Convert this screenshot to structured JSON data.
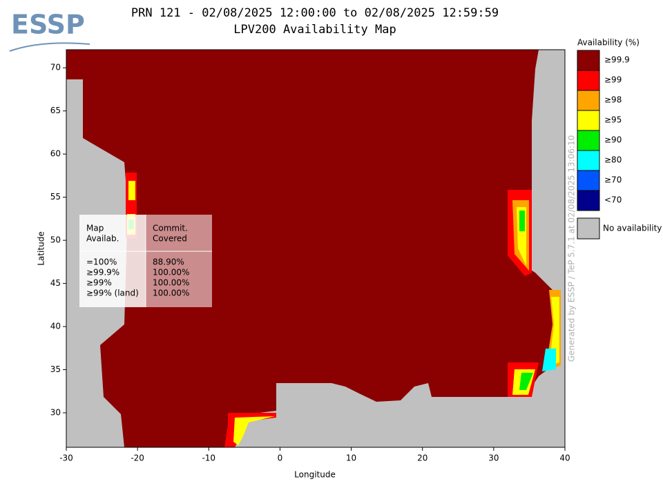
{
  "logo": "ESSP",
  "title": "PRN 121 - 02/08/2025 12:00:00 to 02/08/2025 12:59:59",
  "subtitle": "LPV200 Availability Map",
  "x_label": "Longitude",
  "y_label": "Latitude",
  "xlim": [
    -30,
    40
  ],
  "xticks": [
    -30,
    -20,
    -10,
    0,
    10,
    20,
    30,
    40
  ],
  "ylim": [
    26,
    72.1
  ],
  "yticks": [
    30,
    35,
    40,
    45,
    50,
    55,
    60,
    65,
    70
  ],
  "legend": {
    "title": "Availability (%)",
    "items": [
      {
        "label": "≥99.9",
        "color": "#8b0000"
      },
      {
        "label": "≥99",
        "color": "#ff0000"
      },
      {
        "label": "≥98",
        "color": "#ffa500"
      },
      {
        "label": "≥95",
        "color": "#ffff00"
      },
      {
        "label": "≥90",
        "color": "#00ee00"
      },
      {
        "label": "≥80",
        "color": "#00ffff"
      },
      {
        "label": "≥70",
        "color": "#0055ff"
      },
      {
        "label": "<70",
        "color": "#00008b"
      }
    ],
    "none": {
      "label": "No availability",
      "color": "#c0c0c0"
    }
  },
  "table": {
    "header": [
      [
        "Map",
        "Availab."
      ],
      [
        "Commit.",
        "Covered"
      ]
    ],
    "rows": [
      [
        "=100%",
        "88.90%"
      ],
      [
        "≥99.9%",
        "100.00%"
      ],
      [
        "≥99%",
        "100.00%"
      ],
      [
        "≥99% (land)",
        "100.00%"
      ]
    ]
  },
  "credit": "Generated by ESSP / TeP 5.7.1 at 02/08/2025 13:06:10"
}
